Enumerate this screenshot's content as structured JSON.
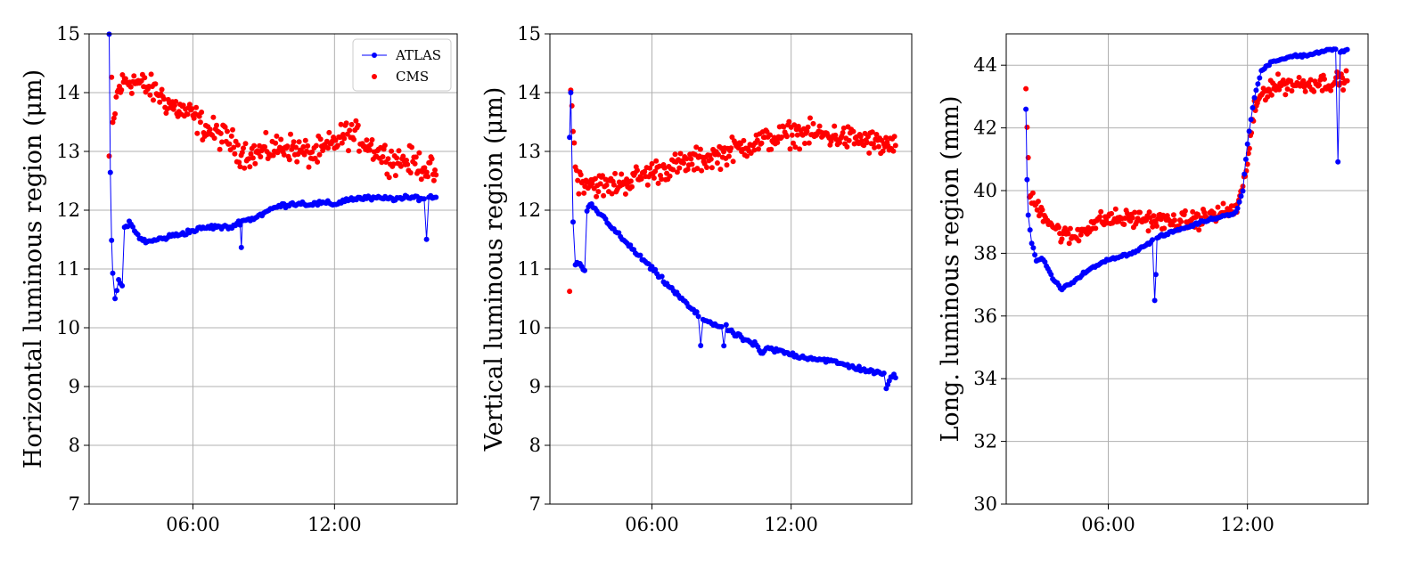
{
  "chart_data": [
    {
      "type": "scatter",
      "ylabel": "Horizontal luminous region (μm)",
      "ylim": [
        7,
        15
      ],
      "yticks": [
        "7",
        "8",
        "9",
        "10",
        "11",
        "12",
        "13",
        "14",
        "15"
      ],
      "xlim_hours": [
        1.6,
        17.2
      ],
      "xticks": [
        {
          "hour": 6,
          "label": "06:00"
        },
        {
          "hour": 12,
          "label": "12:00"
        }
      ],
      "grid": true,
      "legend": {
        "position": "top-right",
        "entries": [
          "ATLAS",
          "CMS"
        ]
      },
      "series": [
        {
          "name": "ATLAS",
          "color": "#0000ff",
          "connected": true,
          "points": [
            [
              2.45,
              15.0
            ],
            [
              2.5,
              12.6
            ],
            [
              2.55,
              11.5
            ],
            [
              2.6,
              10.9
            ],
            [
              2.7,
              10.5
            ],
            [
              2.85,
              10.8
            ],
            [
              3.0,
              10.7
            ],
            [
              3.1,
              11.7
            ],
            [
              3.3,
              11.8
            ],
            [
              3.6,
              11.6
            ],
            [
              4.0,
              11.45
            ],
            [
              4.5,
              11.5
            ],
            [
              5.0,
              11.55
            ],
            [
              5.5,
              11.6
            ],
            [
              6.0,
              11.65
            ],
            [
              6.5,
              11.7
            ],
            [
              7.0,
              11.72
            ],
            [
              7.5,
              11.7
            ],
            [
              7.8,
              11.75
            ],
            [
              8.0,
              11.8
            ],
            [
              8.05,
              11.4
            ],
            [
              8.1,
              11.82
            ],
            [
              8.5,
              11.85
            ],
            [
              9.0,
              11.95
            ],
            [
              9.5,
              12.05
            ],
            [
              10.0,
              12.1
            ],
            [
              10.5,
              12.12
            ],
            [
              11.0,
              12.1
            ],
            [
              11.5,
              12.12
            ],
            [
              12.0,
              12.1
            ],
            [
              12.5,
              12.18
            ],
            [
              13.0,
              12.2
            ],
            [
              13.5,
              12.2
            ],
            [
              14.0,
              12.2
            ],
            [
              14.5,
              12.2
            ],
            [
              15.0,
              12.2
            ],
            [
              15.5,
              12.22
            ],
            [
              15.8,
              12.2
            ],
            [
              15.9,
              11.5
            ],
            [
              16.0,
              12.22
            ],
            [
              16.3,
              12.22
            ]
          ]
        },
        {
          "name": "CMS",
          "color": "#ff0000",
          "connected": false,
          "noise": 0.2,
          "points": [
            [
              2.45,
              12.9
            ],
            [
              2.5,
              15.0
            ],
            [
              2.6,
              13.4
            ],
            [
              2.8,
              14.0
            ],
            [
              3.1,
              14.2
            ],
            [
              3.5,
              14.2
            ],
            [
              4.0,
              14.1
            ],
            [
              4.5,
              14.0
            ],
            [
              5.0,
              13.8
            ],
            [
              5.5,
              13.7
            ],
            [
              6.0,
              13.6
            ],
            [
              6.5,
              13.4
            ],
            [
              7.0,
              13.3
            ],
            [
              7.5,
              13.2
            ],
            [
              8.0,
              13.0
            ],
            [
              8.5,
              12.95
            ],
            [
              9.0,
              13.0
            ],
            [
              9.5,
              13.05
            ],
            [
              10.0,
              13.1
            ],
            [
              10.5,
              13.0
            ],
            [
              11.0,
              12.95
            ],
            [
              11.5,
              13.0
            ],
            [
              12.0,
              13.15
            ],
            [
              12.5,
              13.3
            ],
            [
              13.0,
              13.25
            ],
            [
              13.5,
              13.1
            ],
            [
              14.0,
              12.95
            ],
            [
              14.5,
              12.85
            ],
            [
              15.0,
              12.85
            ],
            [
              15.5,
              12.8
            ],
            [
              16.0,
              12.7
            ],
            [
              16.3,
              12.6
            ]
          ]
        }
      ]
    },
    {
      "type": "scatter",
      "ylabel": "Vertical luminous region (μm)",
      "ylim": [
        7,
        15
      ],
      "yticks": [
        "7",
        "8",
        "9",
        "10",
        "11",
        "12",
        "13",
        "14",
        "15"
      ],
      "xlim_hours": [
        1.6,
        17.2
      ],
      "xticks": [
        {
          "hour": 6,
          "label": "06:00"
        },
        {
          "hour": 12,
          "label": "12:00"
        }
      ],
      "grid": true,
      "series": [
        {
          "name": "ATLAS",
          "color": "#0000ff",
          "connected": true,
          "points": [
            [
              2.45,
              13.2
            ],
            [
              2.5,
              14.0
            ],
            [
              2.6,
              11.8
            ],
            [
              2.7,
              11.1
            ],
            [
              2.9,
              11.05
            ],
            [
              3.1,
              10.95
            ],
            [
              3.2,
              12.0
            ],
            [
              3.4,
              12.1
            ],
            [
              3.7,
              11.95
            ],
            [
              4.0,
              11.85
            ],
            [
              4.5,
              11.6
            ],
            [
              5.0,
              11.4
            ],
            [
              5.5,
              11.2
            ],
            [
              6.0,
              11.0
            ],
            [
              6.5,
              10.8
            ],
            [
              7.0,
              10.6
            ],
            [
              7.5,
              10.4
            ],
            [
              8.0,
              10.2
            ],
            [
              8.1,
              9.7
            ],
            [
              8.2,
              10.15
            ],
            [
              8.5,
              10.1
            ],
            [
              9.0,
              10.0
            ],
            [
              9.1,
              9.7
            ],
            [
              9.2,
              10.0
            ],
            [
              9.5,
              9.9
            ],
            [
              10.0,
              9.8
            ],
            [
              10.5,
              9.7
            ],
            [
              10.7,
              9.55
            ],
            [
              11.0,
              9.65
            ],
            [
              11.5,
              9.6
            ],
            [
              12.0,
              9.55
            ],
            [
              12.5,
              9.5
            ],
            [
              13.0,
              9.48
            ],
            [
              13.5,
              9.45
            ],
            [
              14.0,
              9.4
            ],
            [
              14.5,
              9.35
            ],
            [
              15.0,
              9.3
            ],
            [
              15.5,
              9.25
            ],
            [
              16.0,
              9.2
            ],
            [
              16.1,
              8.95
            ],
            [
              16.3,
              9.2
            ],
            [
              16.5,
              9.15
            ]
          ]
        },
        {
          "name": "CMS",
          "color": "#ff0000",
          "connected": false,
          "noise": 0.18,
          "points": [
            [
              2.45,
              10.75
            ],
            [
              2.5,
              14.1
            ],
            [
              2.6,
              13.3
            ],
            [
              2.8,
              12.5
            ],
            [
              3.2,
              12.5
            ],
            [
              4.0,
              12.4
            ],
            [
              5.0,
              12.5
            ],
            [
              6.0,
              12.65
            ],
            [
              7.0,
              12.75
            ],
            [
              8.0,
              12.85
            ],
            [
              9.0,
              12.95
            ],
            [
              10.0,
              13.1
            ],
            [
              11.0,
              13.2
            ],
            [
              12.0,
              13.3
            ],
            [
              13.0,
              13.3
            ],
            [
              14.0,
              13.25
            ],
            [
              15.0,
              13.2
            ],
            [
              16.0,
              13.1
            ],
            [
              16.5,
              13.1
            ]
          ]
        }
      ]
    },
    {
      "type": "scatter",
      "ylabel": "Long. luminous region (mm)",
      "ylim": [
        30,
        45
      ],
      "yticks": [
        "30",
        "32",
        "34",
        "36",
        "38",
        "40",
        "42",
        "44"
      ],
      "xlim_hours": [
        1.6,
        17.2
      ],
      "xticks": [
        {
          "hour": 6,
          "label": "06:00"
        },
        {
          "hour": 12,
          "label": "12:00"
        }
      ],
      "grid": true,
      "series": [
        {
          "name": "ATLAS",
          "color": "#0000ff",
          "connected": true,
          "points": [
            [
              2.45,
              42.6
            ],
            [
              2.5,
              40.4
            ],
            [
              2.55,
              39.2
            ],
            [
              2.7,
              38.3
            ],
            [
              2.9,
              37.8
            ],
            [
              3.2,
              37.8
            ],
            [
              3.6,
              37.2
            ],
            [
              4.0,
              36.85
            ],
            [
              4.5,
              37.1
            ],
            [
              5.0,
              37.4
            ],
            [
              5.5,
              37.6
            ],
            [
              6.0,
              37.8
            ],
            [
              6.5,
              37.9
            ],
            [
              7.0,
              38.0
            ],
            [
              7.5,
              38.2
            ],
            [
              7.9,
              38.4
            ],
            [
              8.0,
              36.5
            ],
            [
              8.05,
              37.3
            ],
            [
              8.1,
              38.5
            ],
            [
              8.5,
              38.6
            ],
            [
              9.0,
              38.75
            ],
            [
              9.5,
              38.85
            ],
            [
              10.0,
              39.0
            ],
            [
              10.5,
              39.1
            ],
            [
              11.0,
              39.2
            ],
            [
              11.5,
              39.3
            ],
            [
              11.8,
              40.0
            ],
            [
              12.0,
              41.5
            ],
            [
              12.3,
              43.0
            ],
            [
              12.6,
              43.8
            ],
            [
              13.0,
              44.1
            ],
            [
              13.5,
              44.2
            ],
            [
              14.0,
              44.3
            ],
            [
              14.5,
              44.3
            ],
            [
              15.0,
              44.4
            ],
            [
              15.5,
              44.5
            ],
            [
              15.8,
              44.5
            ],
            [
              15.9,
              40.9
            ],
            [
              16.0,
              44.4
            ],
            [
              16.3,
              44.5
            ]
          ]
        },
        {
          "name": "CMS",
          "color": "#ff0000",
          "connected": false,
          "noise": 0.25,
          "points": [
            [
              2.45,
              43.2
            ],
            [
              2.5,
              42.2
            ],
            [
              2.6,
              39.8
            ],
            [
              2.8,
              39.6
            ],
            [
              3.2,
              39.3
            ],
            [
              3.6,
              38.9
            ],
            [
              4.0,
              38.6
            ],
            [
              4.5,
              38.5
            ],
            [
              5.0,
              38.8
            ],
            [
              5.5,
              39.0
            ],
            [
              6.0,
              39.1
            ],
            [
              6.5,
              39.1
            ],
            [
              7.0,
              39.1
            ],
            [
              7.5,
              39.1
            ],
            [
              8.0,
              39.05
            ],
            [
              8.5,
              39.0
            ],
            [
              9.0,
              39.0
            ],
            [
              9.5,
              39.05
            ],
            [
              10.0,
              39.1
            ],
            [
              10.5,
              39.2
            ],
            [
              11.0,
              39.3
            ],
            [
              11.5,
              39.4
            ],
            [
              11.8,
              40.0
            ],
            [
              12.0,
              41.0
            ],
            [
              12.3,
              42.5
            ],
            [
              12.6,
              43.1
            ],
            [
              13.0,
              43.3
            ],
            [
              13.5,
              43.4
            ],
            [
              14.0,
              43.4
            ],
            [
              14.5,
              43.4
            ],
            [
              15.0,
              43.45
            ],
            [
              15.5,
              43.45
            ],
            [
              16.0,
              43.5
            ],
            [
              16.3,
              43.5
            ]
          ]
        }
      ]
    }
  ]
}
